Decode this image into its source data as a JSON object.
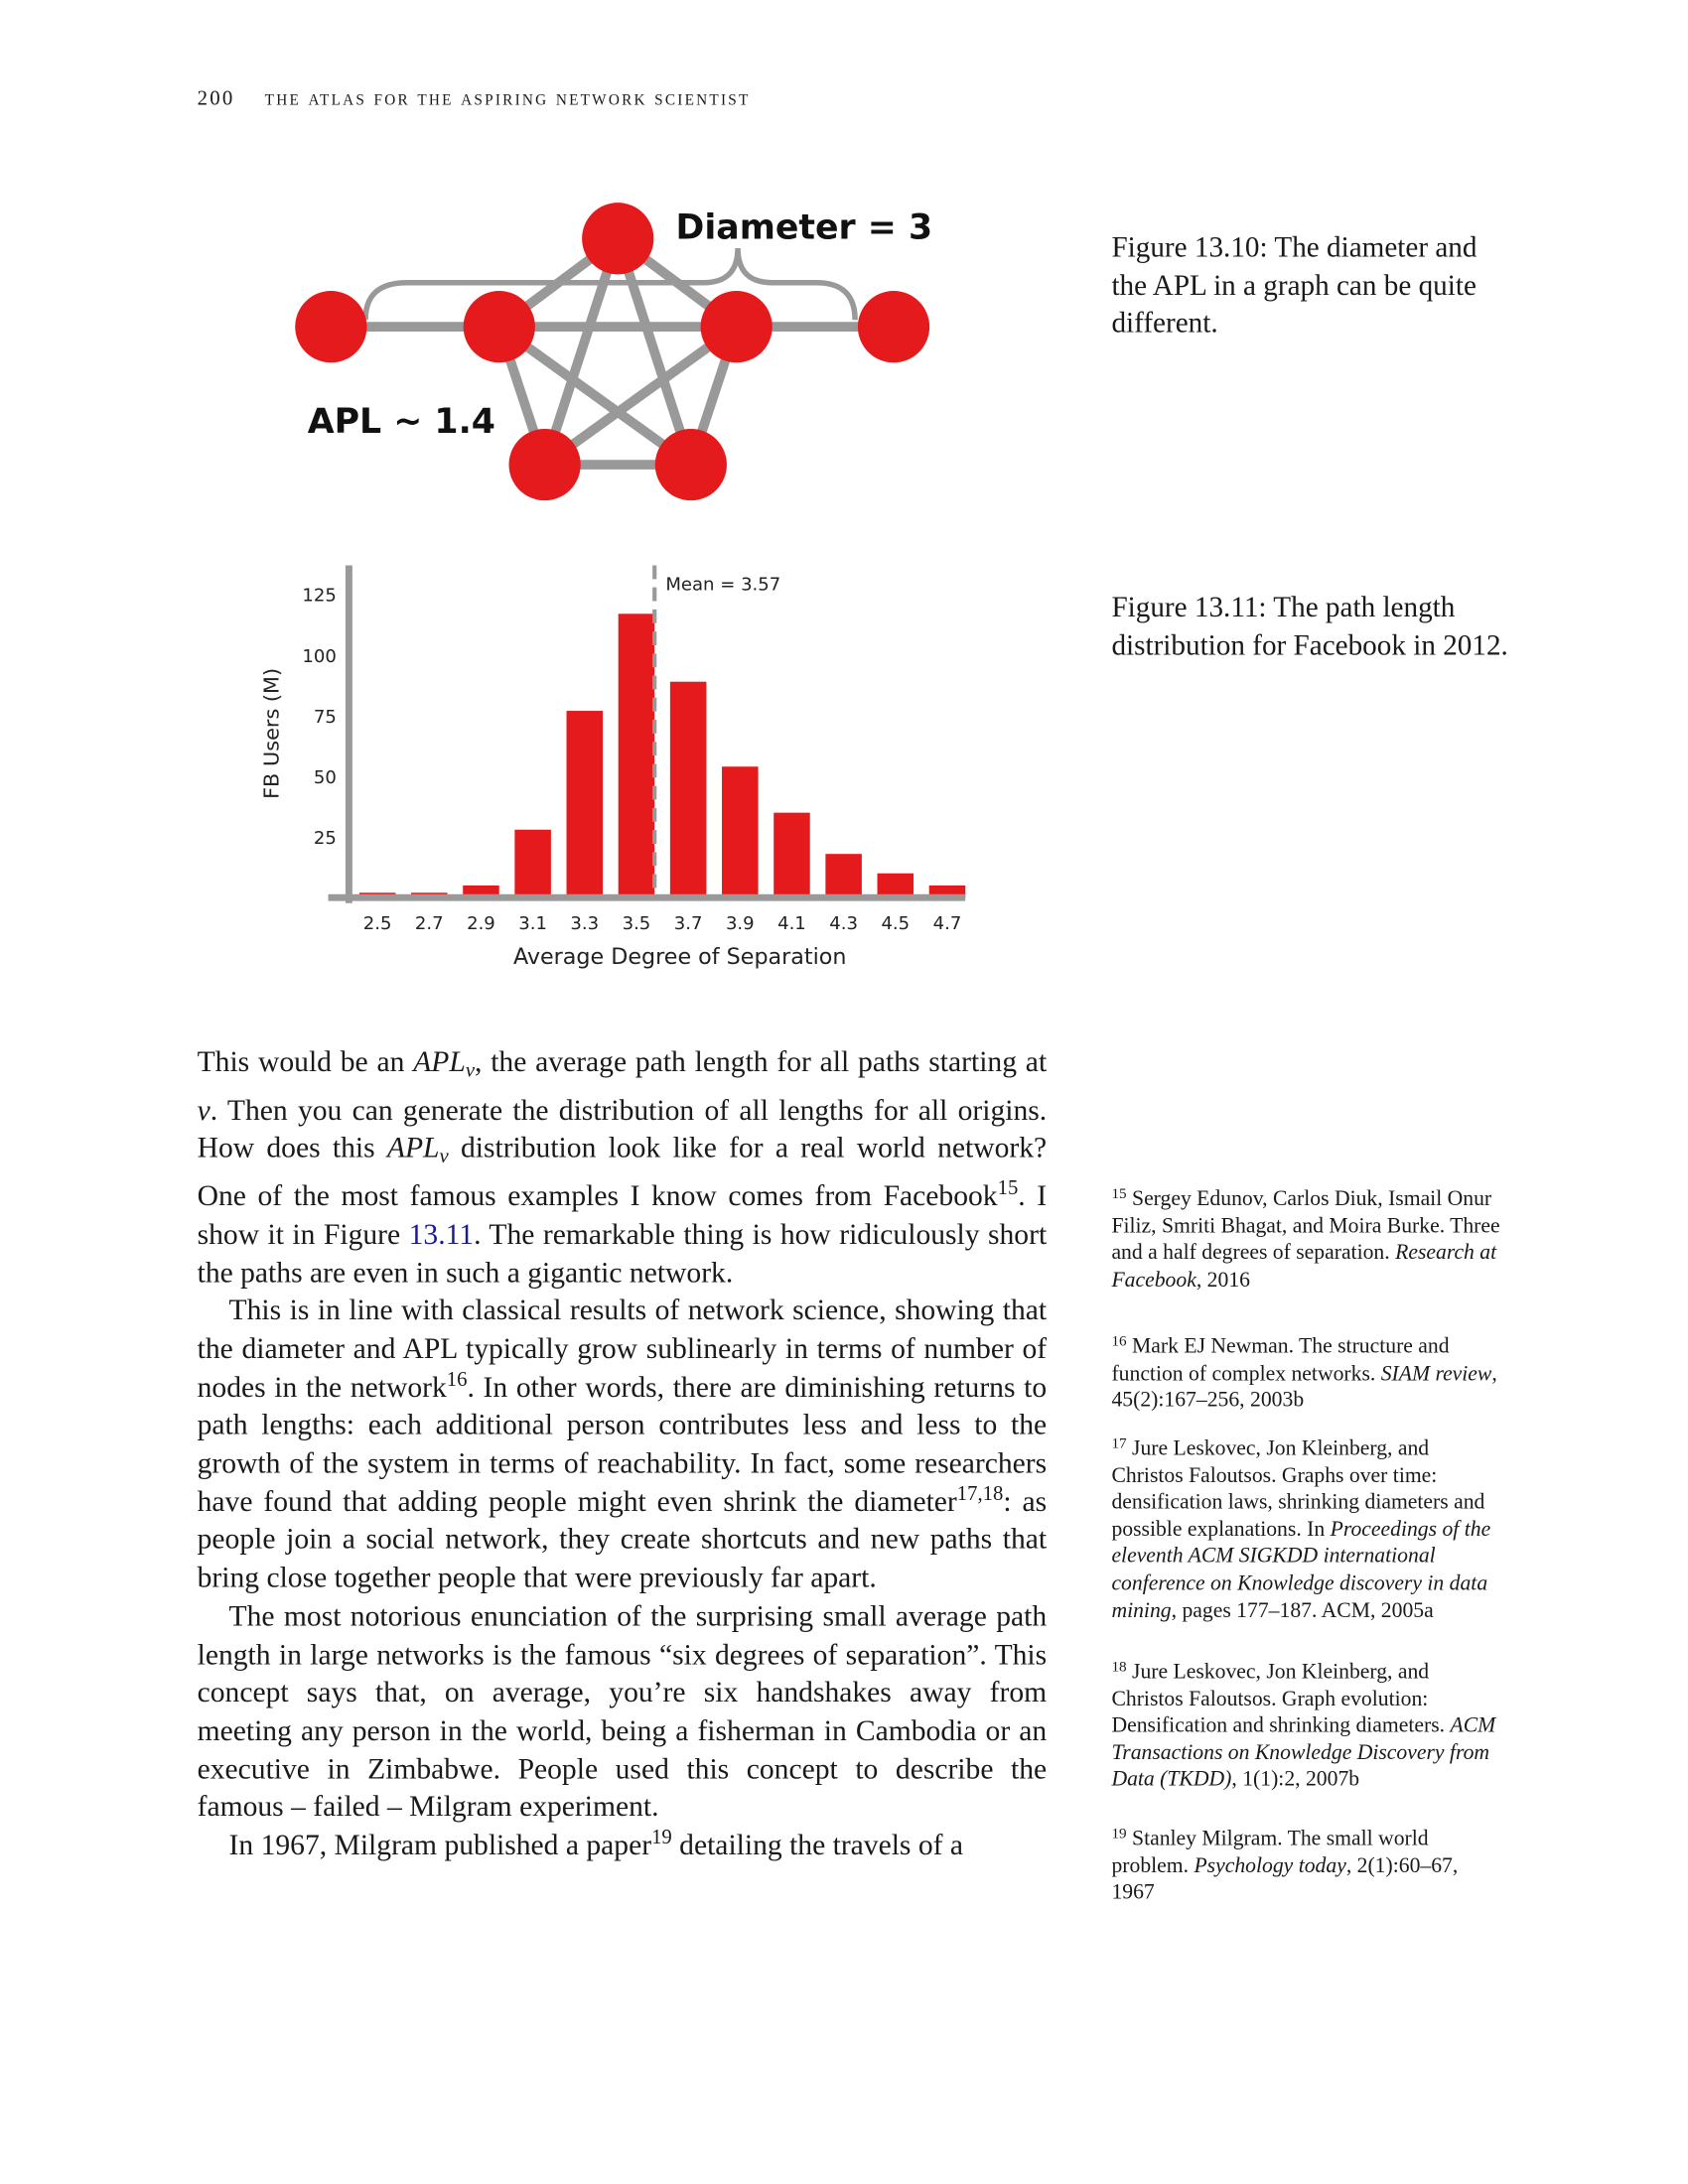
{
  "header": {
    "page_number": "200",
    "running_title": "the atlas for the aspiring network scientist"
  },
  "figure_diagram": {
    "diameter_label": "Diameter = 3",
    "apl_label": "APL ~ 1.4",
    "caption": "Figure 13.10: The diameter and the APL in a graph can be quite different."
  },
  "chart_data": {
    "type": "bar",
    "caption": "Figure 13.11: The path length distribution for Facebook in 2012.",
    "xlabel": "Average Degree of Separation",
    "ylabel": "FB Users (M)",
    "x": [
      2.5,
      2.7,
      2.9,
      3.1,
      3.3,
      3.5,
      3.7,
      3.9,
      4.1,
      4.3,
      4.5,
      4.7
    ],
    "values": [
      2,
      2,
      5,
      28,
      77,
      117,
      89,
      54,
      35,
      18,
      10,
      5
    ],
    "color": "#e41a1c",
    "xlim": [
      2.31,
      4.77
    ],
    "xticks": [
      2.5,
      2.7,
      2.9,
      3.1,
      3.3,
      3.5,
      3.7,
      3.9,
      4.1,
      4.3,
      4.5,
      4.7
    ],
    "ylim": [
      0,
      137
    ],
    "yticks": [
      25,
      50,
      75,
      100,
      125
    ],
    "grid": false,
    "mean": 3.57,
    "mean_label": "Mean = 3.57"
  },
  "body": {
    "paragraphs": [
      [
        "This would be an ",
        "APL",
        "v",
        ", the average path length for all paths starting at ",
        "v",
        ". Then you can generate the distribution of all lengths for all origins. How does this ",
        "APL",
        "v",
        " distribution look like for a real world network? One of the most famous examples I know comes from Facebook",
        "15",
        ". I show it in Figure ",
        "13.11",
        ". The remarkable thing is how ridiculously short the paths are even in such a gigantic network."
      ],
      [
        "This is in line with classical results of network science, showing that the diameter and APL typically grow sublinearly in terms of number of nodes in the network",
        "16",
        ". In other words, there are diminishing returns to path lengths: each additional person contributes less and less to the growth of the system in terms of reachability. In fact, some researchers have found that adding people might even shrink the diameter",
        "17,18",
        ": as people join a social network, they create shortcuts and new paths that bring close together people that were previously far apart."
      ],
      [
        "The most notorious enunciation of the surprising small average path length in large networks is the famous “six degrees of separation”. This concept says that, on average, you’re six handshakes away from meeting any person in the world, being a fisherman in Cambodia or an executive in Zimbabwe. People used this concept to describe the famous – failed – Milgram experiment."
      ],
      [
        "In 1967, Milgram published a paper",
        "19",
        " detailing the travels of a"
      ]
    ]
  },
  "sidenotes": [
    {
      "mark": "15",
      "text": [
        "Sergey Edunov, Carlos Diuk, Ismail Onur Filiz, Smriti Bhagat, and Moira Burke. Three and a half degrees of separation. ",
        "Research at Facebook",
        ", 2016"
      ]
    },
    {
      "mark": "16",
      "text": [
        "Mark EJ Newman. The structure and function of complex networks. ",
        "SIAM review",
        ", 45(2):167–256, 2003b"
      ]
    },
    {
      "mark": "17",
      "text": [
        "Jure Leskovec, Jon Kleinberg, and Christos Faloutsos. Graphs over time: densification laws, shrinking diameters and possible explanations. In ",
        "Proceedings of the eleventh ACM SIGKDD international conference on Knowledge discovery in data mining",
        ", pages 177–187. ACM, 2005a"
      ]
    },
    {
      "mark": "18",
      "text": [
        "Jure Leskovec, Jon Kleinberg, and Christos Faloutsos. Graph evolution: Densification and shrinking diameters. ",
        "ACM Transactions on Knowledge Discovery from Data (TKDD)",
        ", 1(1):2, 2007b"
      ]
    },
    {
      "mark": "19",
      "text": [
        "Stanley Milgram. The small world problem. ",
        "Psychology today",
        ", 2(1):60–67, 1967"
      ]
    }
  ]
}
